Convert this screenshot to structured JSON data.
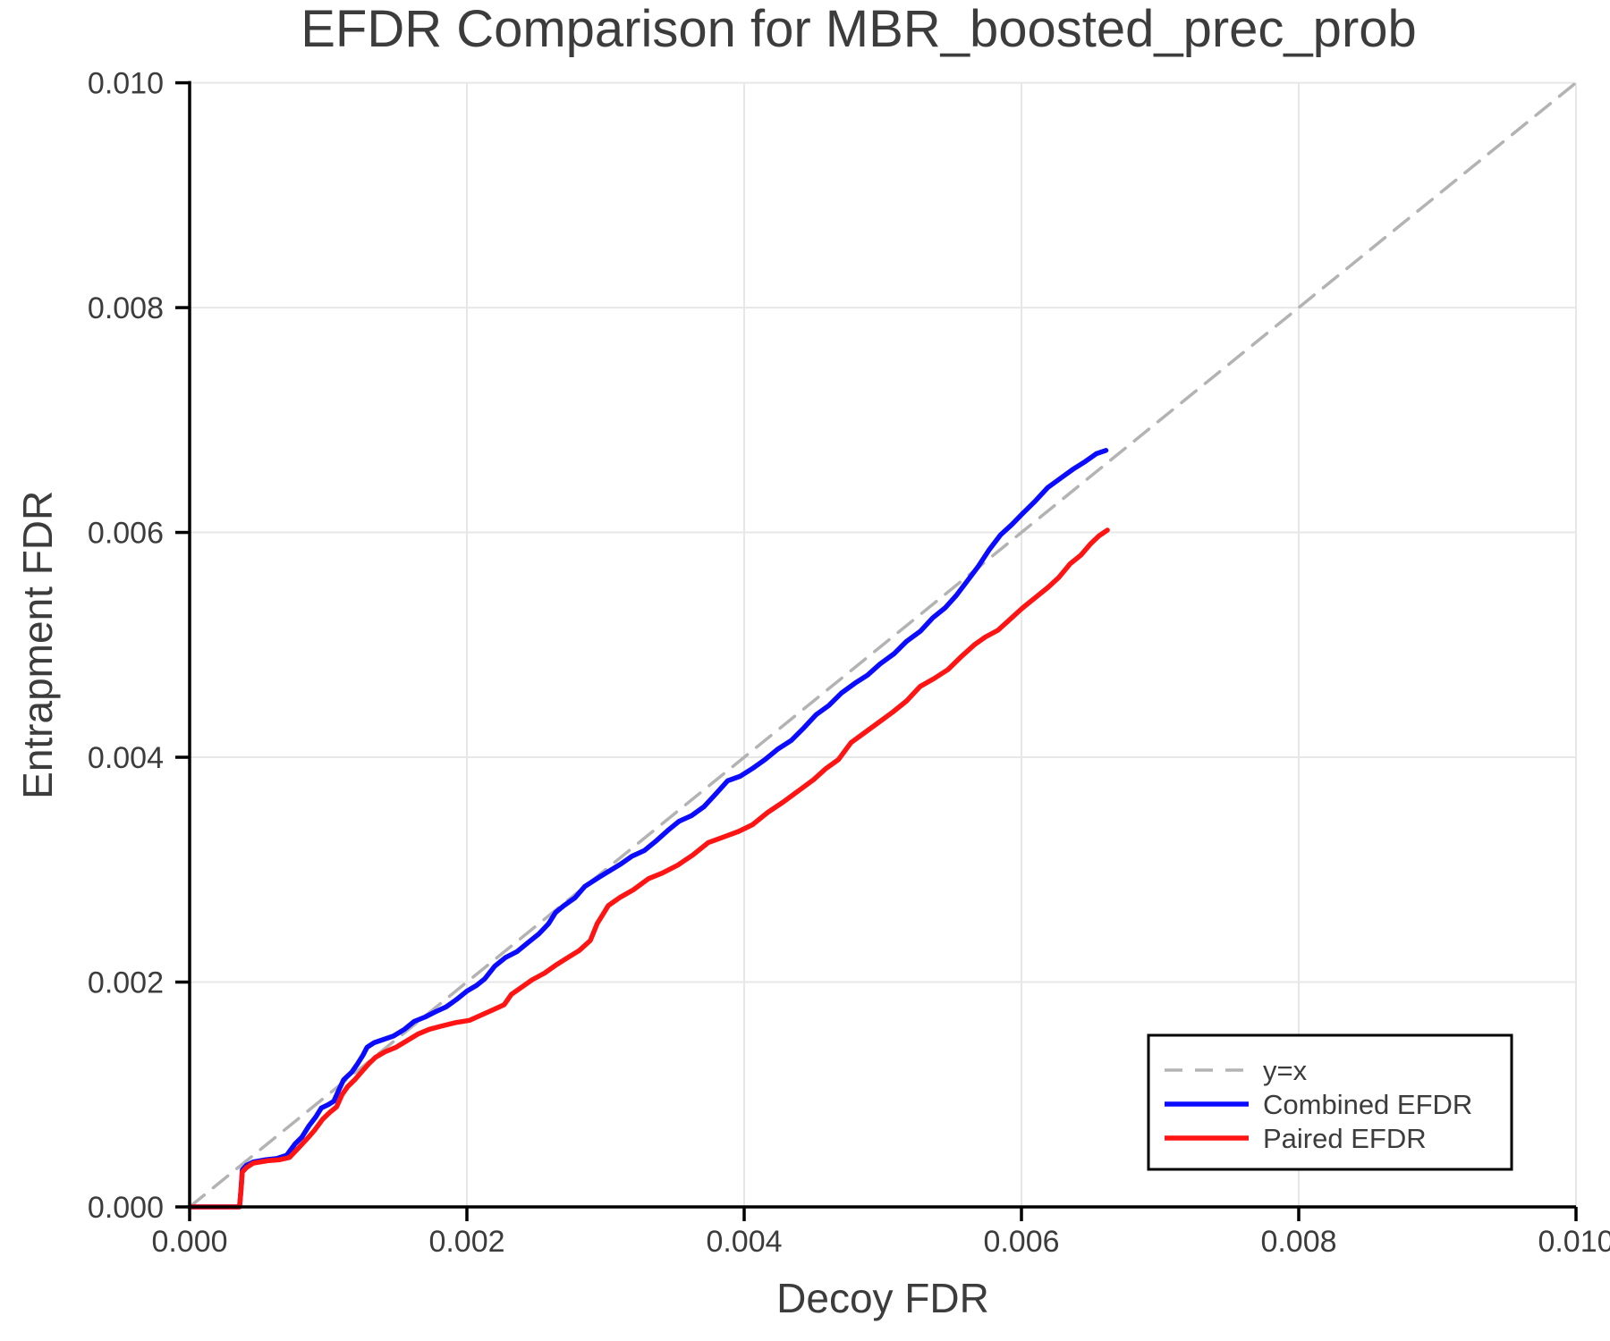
{
  "title": "EFDR Comparison for MBR_boosted_prec_prob",
  "colors": {
    "combined": "#0b0bff",
    "paired": "#ff1414",
    "identity": "#b3b3b3",
    "grid": "#e7e7e7",
    "spine": "#000000",
    "text": "#3c3c3c",
    "legend_border": "#000000",
    "background": "#ffffff"
  },
  "chart_data": {
    "type": "line",
    "title": "EFDR Comparison for MBR_boosted_prec_prob",
    "xlabel": "Decoy FDR",
    "ylabel": "Entrapment FDR",
    "xlim": [
      0.0,
      0.01
    ],
    "ylim": [
      0.0,
      0.01
    ],
    "grid": true,
    "legend_position": "lower right",
    "xticks": {
      "values": [
        0.0,
        0.002,
        0.004,
        0.006,
        0.008,
        0.01
      ],
      "labels": [
        "0.000",
        "0.002",
        "0.004",
        "0.006",
        "0.008",
        "0.010"
      ]
    },
    "yticks": {
      "values": [
        0.0,
        0.002,
        0.004,
        0.006,
        0.008,
        0.01
      ],
      "labels": [
        "0.000",
        "0.002",
        "0.004",
        "0.006",
        "0.008",
        "0.010"
      ]
    },
    "series": [
      {
        "name": "y=x",
        "color": "#b3b3b3",
        "dash": [
          21,
          13
        ],
        "width": 3.5,
        "points": [
          [
            0.0,
            0.0
          ],
          [
            0.01,
            0.01
          ]
        ]
      },
      {
        "name": "Combined EFDR",
        "color": "#0b0bff",
        "dash": null,
        "width": 5.5,
        "points": [
          [
            0.0,
            0.0
          ],
          [
            0.00036,
            0.0
          ],
          [
            0.00037,
            0.00015
          ],
          [
            0.00038,
            0.00033
          ],
          [
            0.00041,
            0.00037
          ],
          [
            0.00046,
            0.0004
          ],
          [
            0.00055,
            0.00042
          ],
          [
            0.00063,
            0.00043
          ],
          [
            0.0007,
            0.00046
          ],
          [
            0.00076,
            0.00056
          ],
          [
            0.00081,
            0.00062
          ],
          [
            0.00086,
            0.00072
          ],
          [
            0.00091,
            0.0008
          ],
          [
            0.00095,
            0.00088
          ],
          [
            0.001,
            0.00091
          ],
          [
            0.00104,
            0.00094
          ],
          [
            0.00108,
            0.00105
          ],
          [
            0.00111,
            0.00113
          ],
          [
            0.00117,
            0.0012
          ],
          [
            0.00121,
            0.00127
          ],
          [
            0.00125,
            0.00135
          ],
          [
            0.00128,
            0.00142
          ],
          [
            0.00133,
            0.00146
          ],
          [
            0.0014,
            0.00149
          ],
          [
            0.00147,
            0.00152
          ],
          [
            0.00155,
            0.00158
          ],
          [
            0.00162,
            0.00165
          ],
          [
            0.0017,
            0.00169
          ],
          [
            0.00178,
            0.00174
          ],
          [
            0.00185,
            0.00178
          ],
          [
            0.00193,
            0.00185
          ],
          [
            0.002,
            0.00192
          ],
          [
            0.00207,
            0.00197
          ],
          [
            0.00213,
            0.00203
          ],
          [
            0.0022,
            0.00214
          ],
          [
            0.00228,
            0.00222
          ],
          [
            0.00236,
            0.00227
          ],
          [
            0.00244,
            0.00235
          ],
          [
            0.00252,
            0.00243
          ],
          [
            0.00259,
            0.00252
          ],
          [
            0.00264,
            0.00262
          ],
          [
            0.0027,
            0.00268
          ],
          [
            0.00278,
            0.00275
          ],
          [
            0.00285,
            0.00285
          ],
          [
            0.00295,
            0.00293
          ],
          [
            0.00303,
            0.00299
          ],
          [
            0.00311,
            0.00305
          ],
          [
            0.00319,
            0.00312
          ],
          [
            0.00328,
            0.00317
          ],
          [
            0.00336,
            0.00325
          ],
          [
            0.00345,
            0.00335
          ],
          [
            0.00353,
            0.00343
          ],
          [
            0.00362,
            0.00348
          ],
          [
            0.00371,
            0.00356
          ],
          [
            0.0038,
            0.00368
          ],
          [
            0.00388,
            0.00379
          ],
          [
            0.00397,
            0.00383
          ],
          [
            0.00406,
            0.0039
          ],
          [
            0.00415,
            0.00398
          ],
          [
            0.00424,
            0.00407
          ],
          [
            0.00434,
            0.00415
          ],
          [
            0.00443,
            0.00426
          ],
          [
            0.00452,
            0.00438
          ],
          [
            0.00461,
            0.00446
          ],
          [
            0.0047,
            0.00457
          ],
          [
            0.0048,
            0.00466
          ],
          [
            0.00489,
            0.00473
          ],
          [
            0.00498,
            0.00483
          ],
          [
            0.00508,
            0.00492
          ],
          [
            0.00517,
            0.00503
          ],
          [
            0.00527,
            0.00512
          ],
          [
            0.00536,
            0.00524
          ],
          [
            0.00545,
            0.00533
          ],
          [
            0.00553,
            0.00544
          ],
          [
            0.00561,
            0.00557
          ],
          [
            0.00569,
            0.0057
          ],
          [
            0.00577,
            0.00585
          ],
          [
            0.00585,
            0.00598
          ],
          [
            0.00593,
            0.00607
          ],
          [
            0.00601,
            0.00617
          ],
          [
            0.0061,
            0.00628
          ],
          [
            0.00619,
            0.0064
          ],
          [
            0.00628,
            0.00648
          ],
          [
            0.00637,
            0.00656
          ],
          [
            0.00646,
            0.00663
          ],
          [
            0.00654,
            0.0067
          ],
          [
            0.00661,
            0.00673
          ]
        ]
      },
      {
        "name": "Paired EFDR",
        "color": "#ff1414",
        "dash": null,
        "width": 5.5,
        "points": [
          [
            0.0,
            0.0
          ],
          [
            0.00036,
            0.0
          ],
          [
            0.00037,
            0.00014
          ],
          [
            0.00038,
            0.00031
          ],
          [
            0.00041,
            0.00035
          ],
          [
            0.00046,
            0.00039
          ],
          [
            0.00056,
            0.00041
          ],
          [
            0.00065,
            0.00042
          ],
          [
            0.00072,
            0.00044
          ],
          [
            0.00079,
            0.00053
          ],
          [
            0.00085,
            0.00061
          ],
          [
            0.0009,
            0.00068
          ],
          [
            0.00096,
            0.00078
          ],
          [
            0.00101,
            0.00084
          ],
          [
            0.00106,
            0.00089
          ],
          [
            0.0011,
            0.001
          ],
          [
            0.00114,
            0.00107
          ],
          [
            0.00119,
            0.00113
          ],
          [
            0.00124,
            0.0012
          ],
          [
            0.00129,
            0.00127
          ],
          [
            0.00134,
            0.00133
          ],
          [
            0.00141,
            0.00138
          ],
          [
            0.00149,
            0.00142
          ],
          [
            0.00157,
            0.00148
          ],
          [
            0.00165,
            0.00154
          ],
          [
            0.00173,
            0.00158
          ],
          [
            0.00182,
            0.00161
          ],
          [
            0.00192,
            0.00164
          ],
          [
            0.00202,
            0.00166
          ],
          [
            0.00211,
            0.00171
          ],
          [
            0.0022,
            0.00176
          ],
          [
            0.00227,
            0.0018
          ],
          [
            0.00232,
            0.00189
          ],
          [
            0.00239,
            0.00195
          ],
          [
            0.00247,
            0.00202
          ],
          [
            0.00256,
            0.00208
          ],
          [
            0.00264,
            0.00215
          ],
          [
            0.00273,
            0.00222
          ],
          [
            0.00281,
            0.00228
          ],
          [
            0.00289,
            0.00237
          ],
          [
            0.00294,
            0.00252
          ],
          [
            0.00302,
            0.00268
          ],
          [
            0.0031,
            0.00275
          ],
          [
            0.0032,
            0.00282
          ],
          [
            0.00331,
            0.00292
          ],
          [
            0.00341,
            0.00297
          ],
          [
            0.00352,
            0.00304
          ],
          [
            0.00363,
            0.00313
          ],
          [
            0.00374,
            0.00324
          ],
          [
            0.00385,
            0.00329
          ],
          [
            0.00396,
            0.00334
          ],
          [
            0.00406,
            0.0034
          ],
          [
            0.00417,
            0.00351
          ],
          [
            0.00428,
            0.0036
          ],
          [
            0.00439,
            0.0037
          ],
          [
            0.0045,
            0.0038
          ],
          [
            0.00459,
            0.0039
          ],
          [
            0.00468,
            0.00398
          ],
          [
            0.00477,
            0.00413
          ],
          [
            0.00487,
            0.00422
          ],
          [
            0.00497,
            0.00431
          ],
          [
            0.00507,
            0.0044
          ],
          [
            0.00517,
            0.0045
          ],
          [
            0.00527,
            0.00463
          ],
          [
            0.00537,
            0.0047
          ],
          [
            0.00547,
            0.00478
          ],
          [
            0.00557,
            0.0049
          ],
          [
            0.00566,
            0.005
          ],
          [
            0.00574,
            0.00507
          ],
          [
            0.00583,
            0.00513
          ],
          [
            0.00592,
            0.00523
          ],
          [
            0.00601,
            0.00533
          ],
          [
            0.0061,
            0.00542
          ],
          [
            0.00619,
            0.00551
          ],
          [
            0.00627,
            0.0056
          ],
          [
            0.00635,
            0.00572
          ],
          [
            0.00643,
            0.0058
          ],
          [
            0.0065,
            0.0059
          ],
          [
            0.00656,
            0.00597
          ],
          [
            0.00662,
            0.00602
          ]
        ]
      }
    ],
    "legend_entries": [
      "y=x",
      "Combined EFDR",
      "Paired EFDR"
    ]
  }
}
